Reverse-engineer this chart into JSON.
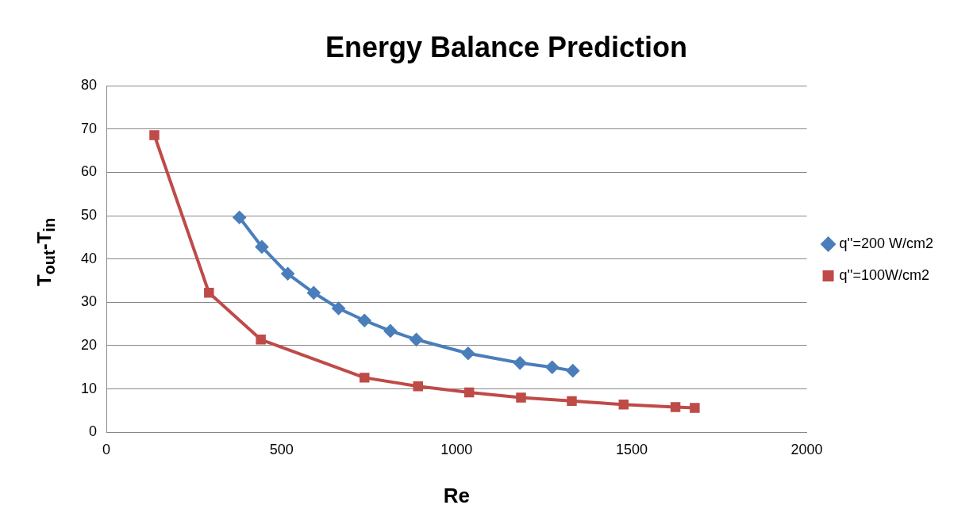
{
  "chart_data": {
    "type": "line",
    "title": "Energy Balance Prediction",
    "xlabel": "Re",
    "ylabel": "T$_{out}$-T$_{in}$",
    "xlim": [
      0,
      2000
    ],
    "xticks": [
      0,
      500,
      1000,
      1500,
      2000
    ],
    "ylim": [
      0,
      80
    ],
    "yticks": [
      0,
      10,
      20,
      30,
      40,
      50,
      60,
      70,
      80
    ],
    "grid": "y",
    "legend": "right",
    "series": [
      {
        "name": "q''=200 W/cm2",
        "color": "#4a7ebb",
        "marker": "diamond",
        "x": [
          380,
          444,
          518,
          592,
          663,
          737,
          811,
          885,
          1033,
          1181,
          1273,
          1332
        ],
        "values": [
          49.6,
          42.8,
          36.6,
          32.2,
          28.6,
          25.8,
          23.4,
          21.4,
          18.2,
          16,
          15,
          14.2
        ]
      },
      {
        "name": "q''=100W/cm2",
        "color": "#be4b48",
        "marker": "square",
        "x": [
          137,
          293,
          441,
          737,
          890,
          1036,
          1184,
          1329,
          1477,
          1625,
          1680
        ],
        "values": [
          68.6,
          32.2,
          21.4,
          12.6,
          10.6,
          9.2,
          8,
          7.2,
          6.4,
          5.8,
          5.6
        ]
      }
    ]
  }
}
